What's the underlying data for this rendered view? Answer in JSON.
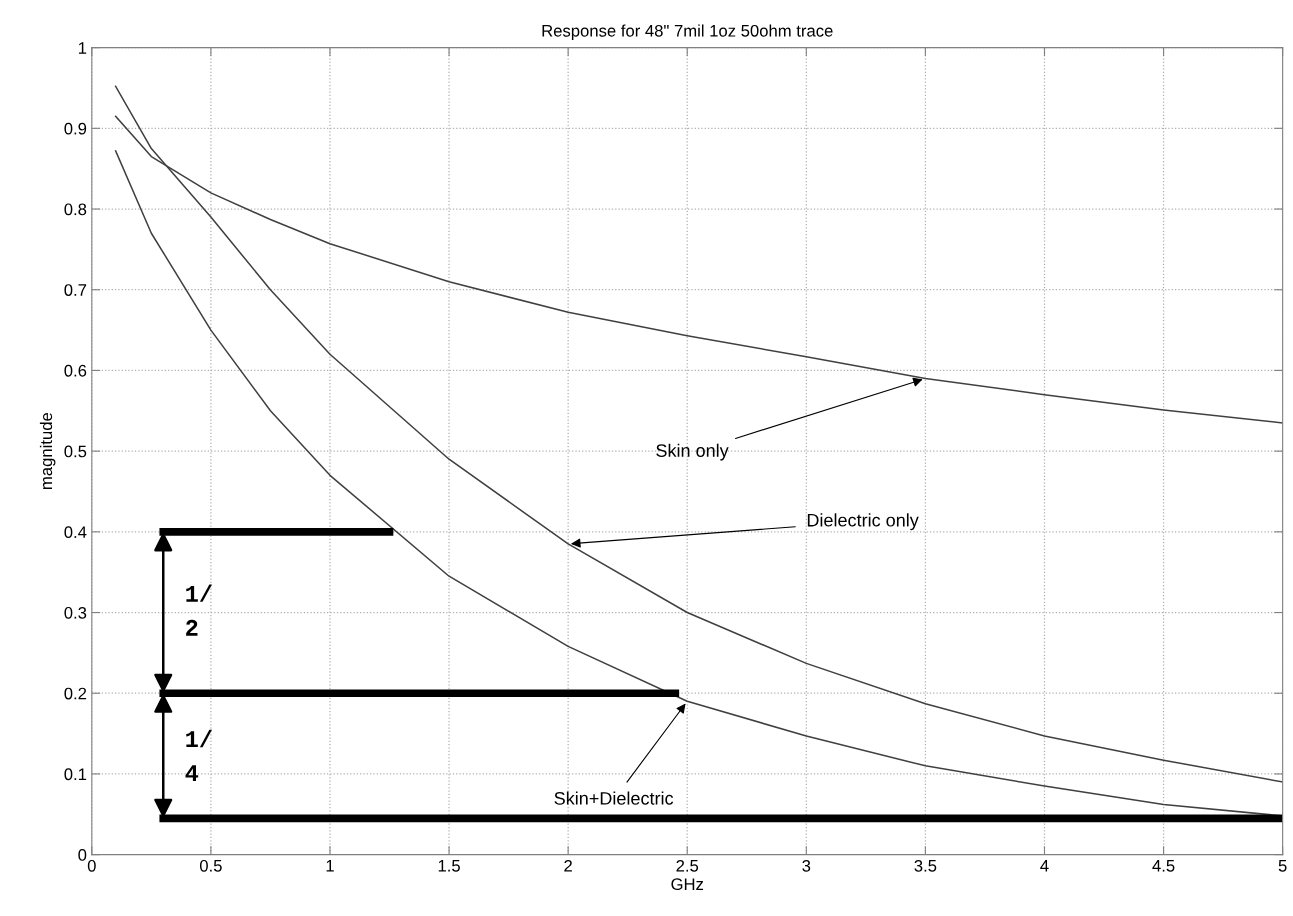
{
  "chart_data": {
    "type": "line",
    "title": "Response for 48\" 7mil 1oz 50ohm trace",
    "xlabel": "GHz",
    "ylabel": "magnitude",
    "xlim": [
      0,
      5
    ],
    "ylim": [
      0,
      1
    ],
    "xticks": [
      0,
      0.5,
      1,
      1.5,
      2,
      2.5,
      3,
      3.5,
      4,
      4.5,
      5
    ],
    "yticks": [
      0,
      0.1,
      0.2,
      0.3,
      0.4,
      0.5,
      0.6,
      0.7,
      0.8,
      0.9,
      1
    ],
    "grid": true,
    "marker": "none",
    "line_style": "solid",
    "series": [
      {
        "color": "#404040",
        "x": [
          0.1,
          0.25,
          0.5,
          0.75,
          1,
          1.5,
          2,
          2.5,
          3,
          3.5,
          4,
          4.5,
          5
        ],
        "values": [
          0.915,
          0.865,
          0.82,
          0.787,
          0.757,
          0.71,
          0.672,
          0.643,
          0.617,
          0.59,
          0.57,
          0.551,
          0.535
        ]
      },
      {
        "color": "#404040",
        "x": [
          0.1,
          0.25,
          0.5,
          0.75,
          1,
          1.5,
          2,
          2.5,
          3,
          3.5,
          4,
          4.5,
          5
        ],
        "values": [
          0.952,
          0.875,
          0.79,
          0.7,
          0.62,
          0.49,
          0.385,
          0.3,
          0.237,
          0.187,
          0.147,
          0.117,
          0.09
        ]
      },
      {
        "color": "#404040",
        "x": [
          0.1,
          0.25,
          0.5,
          0.75,
          1,
          1.5,
          2,
          2.5,
          3,
          3.5,
          4,
          4.5,
          5
        ],
        "values": [
          0.872,
          0.77,
          0.65,
          0.55,
          0.47,
          0.345,
          0.258,
          0.19,
          0.147,
          0.11,
          0.085,
          0.062,
          0.048
        ]
      },
      {
        "color": "#000000",
        "x": [
          0.3,
          1.25
        ],
        "values": [
          0.4,
          0.4
        ]
      },
      {
        "color": "#000000",
        "x": [
          0.3,
          2.45
        ],
        "values": [
          0.2,
          0.2
        ]
      },
      {
        "color": "#000000",
        "x": [
          0.3,
          5
        ],
        "values": [
          0.045,
          0.045
        ]
      }
    ],
    "annotations": [
      {
        "text": "Skin only",
        "x": 3.5,
        "y": 0.59
      },
      {
        "text": "Dielectric only",
        "x": 2,
        "y": 0.385
      },
      {
        "text": "Skin+Dielectric",
        "x": 2.5,
        "y": 0.19
      },
      "1/\n2",
      "1/\n4"
    ]
  }
}
